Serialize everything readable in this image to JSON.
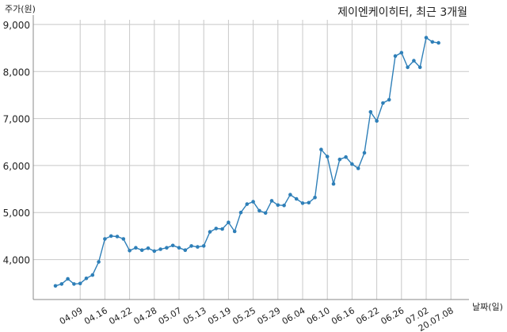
{
  "chart_data": {
    "type": "line",
    "title": "제이엔케이히터, 최근 3개월",
    "ylabel": "주가(원)",
    "xlabel": "날짜(일)",
    "ylim": [
      3150,
      9100
    ],
    "yticks": [
      4000,
      5000,
      6000,
      7000,
      8000,
      9000
    ],
    "ytick_labels": [
      "4,000",
      "5,000",
      "6,000",
      "7,000",
      "8,000",
      "9,000"
    ],
    "xticks": [
      {
        "i": 4,
        "label": "04.09"
      },
      {
        "i": 8,
        "label": "04.16"
      },
      {
        "i": 12,
        "label": "04.22"
      },
      {
        "i": 16,
        "label": "04.28"
      },
      {
        "i": 20,
        "label": "05.07"
      },
      {
        "i": 24,
        "label": "05.13"
      },
      {
        "i": 28,
        "label": "05.19"
      },
      {
        "i": 32,
        "label": "05.25"
      },
      {
        "i": 36,
        "label": "05.29"
      },
      {
        "i": 40,
        "label": "06.04"
      },
      {
        "i": 44,
        "label": "06.10"
      },
      {
        "i": 48,
        "label": "06.16"
      },
      {
        "i": 52,
        "label": "06.22"
      },
      {
        "i": 56,
        "label": "06.26"
      },
      {
        "i": 60,
        "label": "07.02"
      },
      {
        "i": 64,
        "label": "20.07.08"
      }
    ],
    "grid": true,
    "line_color": "#2e7fb8",
    "values": [
      3440,
      3480,
      3590,
      3480,
      3490,
      3600,
      3670,
      3950,
      4440,
      4500,
      4490,
      4440,
      4190,
      4250,
      4200,
      4240,
      4180,
      4220,
      4250,
      4300,
      4250,
      4200,
      4290,
      4270,
      4290,
      4590,
      4660,
      4650,
      4790,
      4600,
      5000,
      5180,
      5230,
      5040,
      4990,
      5250,
      5160,
      5150,
      5380,
      5290,
      5200,
      5210,
      5320,
      6340,
      6190,
      5610,
      6130,
      6180,
      6030,
      5940,
      6270,
      7140,
      6950,
      7330,
      7400,
      8330,
      8400,
      8090,
      8230,
      8090,
      8720,
      8630,
      8610
    ]
  }
}
